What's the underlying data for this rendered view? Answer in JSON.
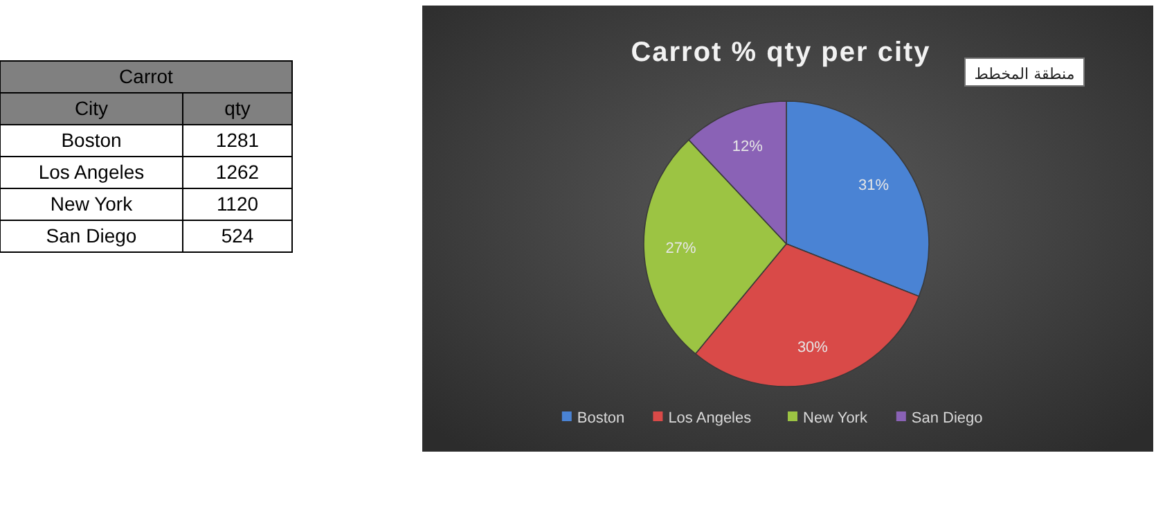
{
  "chart_data": {
    "type": "pie",
    "title": "Carrot % qty per city",
    "categories": [
      "Boston",
      "Los Angeles",
      "New York",
      "San Diego"
    ],
    "values": [
      31,
      30,
      27,
      12
    ],
    "value_labels": [
      "31%",
      "30%",
      "27%",
      "12%"
    ],
    "colors": [
      "#4a83d4",
      "#d94a48",
      "#9cc443",
      "#8a62b6"
    ],
    "legend": "bottom",
    "annotations": [
      "Carrot",
      "City",
      "qty",
      "1281",
      "1262",
      "1120",
      "524",
      "منطقة المخطط"
    ]
  }
}
